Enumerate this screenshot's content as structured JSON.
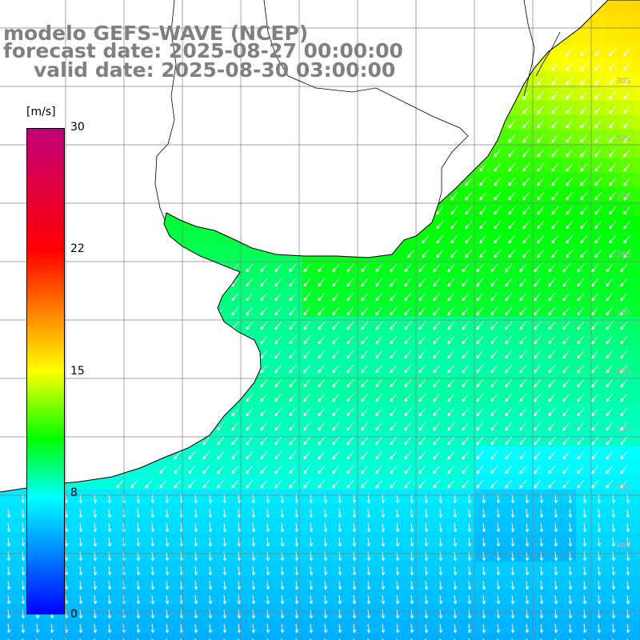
{
  "title": {
    "line1": "modelo GEFS-WAVE (NCEP)",
    "line2": "forecast date: 2025-08-27 00:00:00",
    "line3": "valid date: 2025-08-30 03:00:00"
  },
  "legend": {
    "unit": "[m/s]",
    "ticks": [
      "30",
      "22",
      "15",
      "8",
      "0"
    ],
    "colors": [
      "#c0007a",
      "#ff0000",
      "#ff7a00",
      "#ffff00",
      "#00ff00",
      "#00ffff",
      "#00a0ff",
      "#0000ff"
    ]
  },
  "grid_labels_right": [
    "30S",
    "32S",
    "34S",
    "36S",
    "38S",
    "40S",
    "42S",
    "44S",
    "46S"
  ],
  "map_colors": {
    "land": "#ffffff",
    "coast": "#000000",
    "grid": "#808080",
    "arrow": "#ffffff"
  }
}
